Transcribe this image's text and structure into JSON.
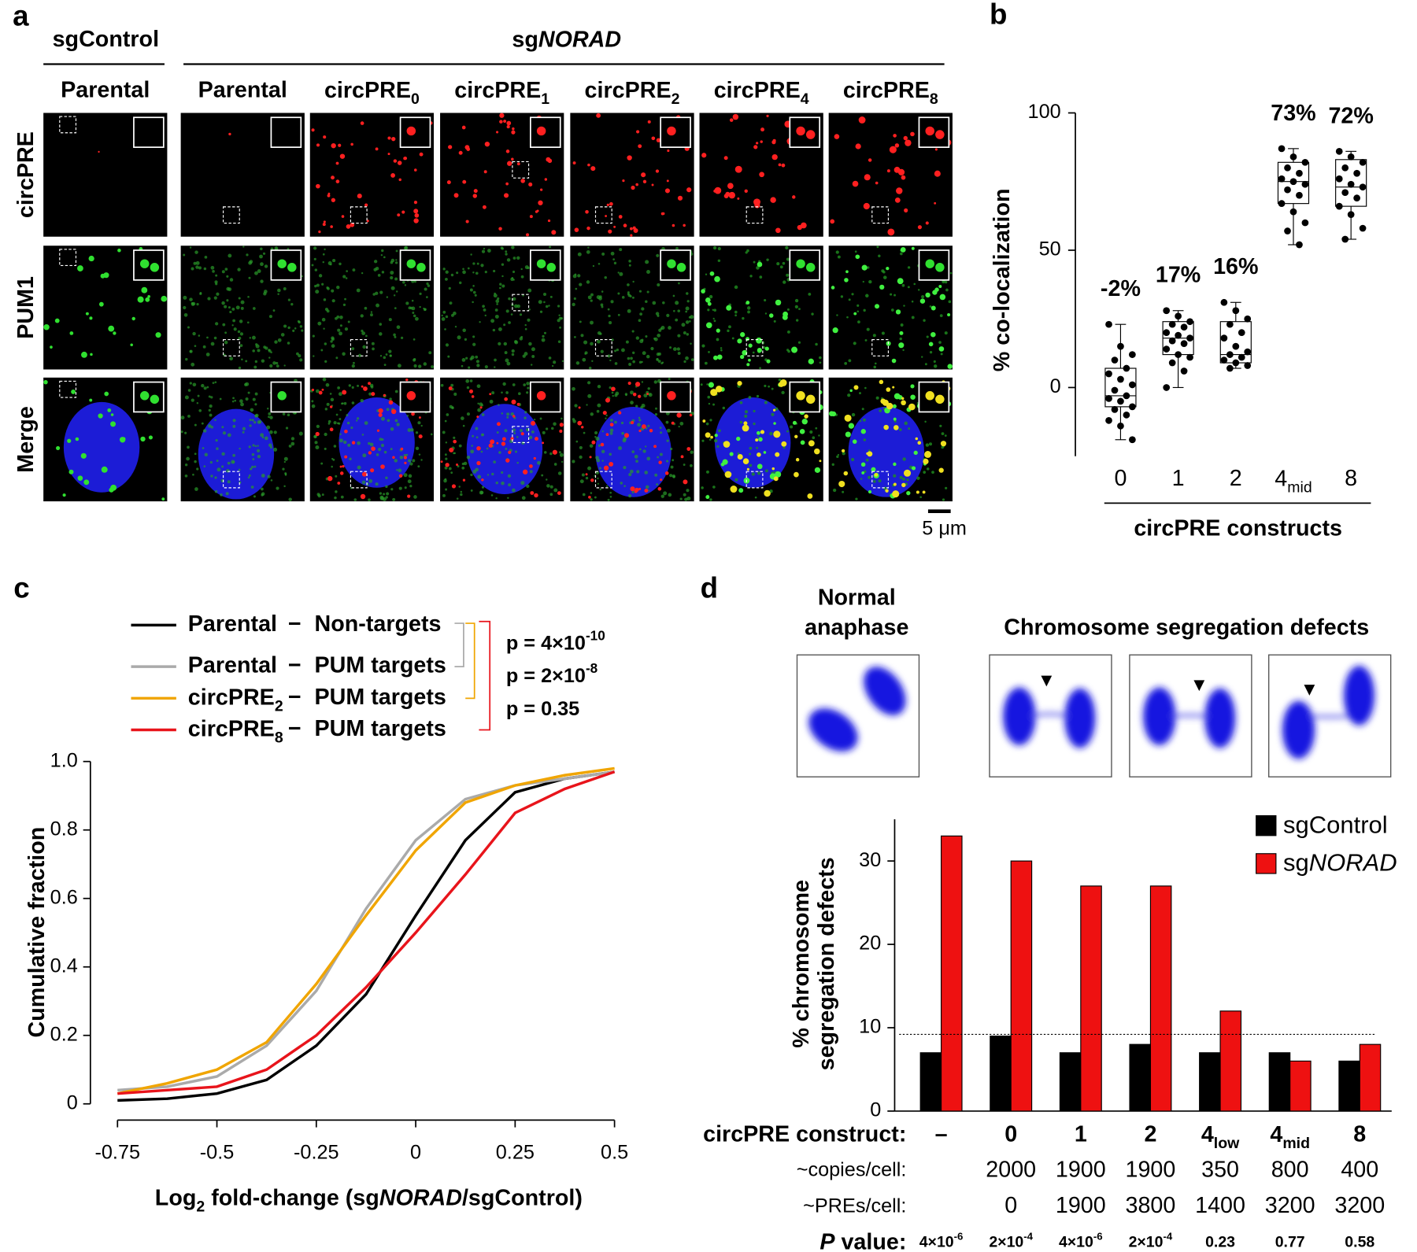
{
  "panel_a": {
    "label": "a",
    "groups": [
      "sgControl",
      [
        {
          "t": "sg"
        },
        {
          "t": "NORAD",
          "s": "it"
        }
      ]
    ],
    "columns": [
      "Parental",
      "Parental",
      [
        {
          "t": "circPRE"
        },
        {
          "t": "0",
          "s": "sub"
        }
      ],
      [
        {
          "t": "circPRE"
        },
        {
          "t": "1",
          "s": "sub"
        }
      ],
      [
        {
          "t": "circPRE"
        },
        {
          "t": "2",
          "s": "sub"
        }
      ],
      [
        {
          "t": "circPRE"
        },
        {
          "t": "4",
          "s": "sub"
        }
      ],
      [
        {
          "t": "circPRE"
        },
        {
          "t": "8",
          "s": "sub"
        }
      ]
    ],
    "rows": [
      "circPRE",
      "PUM1",
      "Merge"
    ],
    "scale_bar": "5 μm"
  },
  "chart_data": [
    {
      "type": "box",
      "label": "b",
      "ylabel": "% co-localization",
      "xlabel": "circPRE constructs",
      "categories": [
        "0",
        "1",
        "2",
        [
          {
            "t": "4"
          },
          {
            "t": "mid",
            "s": "sub"
          }
        ],
        "8"
      ],
      "ylim": [
        -25,
        100
      ],
      "yticks": [
        0,
        50,
        100
      ],
      "color": "#000000",
      "boxes": [
        {
          "min": -19,
          "q1": -7,
          "median": -3,
          "q3": 7,
          "max": 23,
          "points": [
            23,
            15,
            12,
            10,
            7,
            5,
            3,
            1,
            -1,
            -3,
            -4,
            -5,
            -7,
            -8,
            -10,
            -12,
            -14,
            -19
          ]
        },
        {
          "min": 0,
          "q1": 12,
          "median": 18,
          "q3": 24,
          "max": 28,
          "points": [
            28,
            26,
            24,
            23,
            22,
            20,
            19,
            18,
            17,
            16,
            14,
            12,
            11,
            9,
            6,
            0
          ]
        },
        {
          "min": 7,
          "q1": 9,
          "median": 12,
          "q3": 24,
          "max": 31,
          "points": [
            31,
            28,
            25,
            23,
            20,
            18,
            15,
            13,
            12,
            11,
            10,
            9,
            8,
            7
          ]
        },
        {
          "min": 52,
          "q1": 67,
          "median": 75,
          "q3": 82,
          "max": 87,
          "points": [
            87,
            84,
            82,
            80,
            78,
            76,
            75,
            74,
            72,
            70,
            67,
            64,
            60,
            57,
            52
          ]
        },
        {
          "min": 54,
          "q1": 66,
          "median": 73,
          "q3": 83,
          "max": 86,
          "points": [
            86,
            84,
            82,
            80,
            78,
            76,
            74,
            73,
            71,
            69,
            66,
            63,
            58,
            54
          ]
        }
      ],
      "values": [
        -2,
        17,
        16,
        73,
        72
      ],
      "value_labels": [
        "-2%",
        "17%",
        "16%",
        "73%",
        "72%"
      ]
    },
    {
      "type": "line",
      "label": "c",
      "xlabel": [
        {
          "t": "Log"
        },
        {
          "t": "2",
          "s": "sub"
        },
        {
          "t": " fold-change (sg"
        },
        {
          "t": "NORAD",
          "s": "it"
        },
        {
          "t": "/sgControl)"
        }
      ],
      "ylabel": "Cumulative fraction",
      "x": [
        -0.75,
        -0.625,
        -0.5,
        -0.375,
        -0.25,
        -0.125,
        0,
        0.125,
        0.25,
        0.375,
        0.5
      ],
      "xlim": [
        -0.75,
        0.5
      ],
      "ylim": [
        0,
        1
      ],
      "xticks": [
        -0.75,
        -0.5,
        -0.25,
        0,
        0.25,
        0.5
      ],
      "yticks": [
        0,
        0.2,
        0.4,
        0.6,
        0.8,
        {
          "value": 1,
          "label": "1.0"
        }
      ],
      "separator": "−",
      "series": [
        {
          "name": "Parental",
          "group": "Non-targets",
          "color": "#000000",
          "values": [
            0.01,
            0.015,
            0.03,
            0.07,
            0.17,
            0.32,
            0.55,
            0.77,
            0.91,
            0.95,
            0.97
          ]
        },
        {
          "name": "Parental",
          "group": "PUM targets",
          "color": "#aaaaaa",
          "values": [
            0.04,
            0.05,
            0.08,
            0.17,
            0.33,
            0.57,
            0.77,
            0.89,
            0.93,
            0.95,
            0.97
          ]
        },
        {
          "name": [
            {
              "t": "circPRE"
            },
            {
              "t": "2",
              "s": "sub"
            }
          ],
          "group": "PUM targets",
          "color": "#f0a500",
          "values": [
            0.03,
            0.06,
            0.1,
            0.18,
            0.35,
            0.55,
            0.74,
            0.88,
            0.93,
            0.96,
            0.98
          ]
        },
        {
          "name": [
            {
              "t": "circPRE"
            },
            {
              "t": "8",
              "s": "sub"
            }
          ],
          "group": "PUM targets",
          "color": "#e8141b",
          "values": [
            0.03,
            0.04,
            0.05,
            0.1,
            0.2,
            0.34,
            0.5,
            0.67,
            0.85,
            0.92,
            0.97
          ]
        }
      ],
      "p_values": [
        {
          "text": [
            {
              "t": "p = 4×10"
            },
            {
              "t": "-10",
              "s": "sup"
            }
          ],
          "color": "#aaaaaa"
        },
        {
          "text": [
            {
              "t": "p = 2×10"
            },
            {
              "t": "-8",
              "s": "sup"
            }
          ],
          "color": "#f0a500"
        },
        {
          "text": "p = 0.35",
          "color": "#e8141b"
        }
      ]
    },
    {
      "type": "grouped_bar",
      "label": "d",
      "image_titles": {
        "normal": [
          "Normal",
          "anaphase"
        ],
        "defects": "Chromosome segregation defects"
      },
      "ylabel": [
        "% chromosome",
        "segregation defects"
      ],
      "categories_label": "circPRE construct:",
      "categories": [
        "–",
        "0",
        "1",
        "2",
        [
          {
            "t": "4"
          },
          {
            "t": "low",
            "s": "sub"
          }
        ],
        [
          {
            "t": "4"
          },
          {
            "t": "mid",
            "s": "sub"
          }
        ],
        "8"
      ],
      "ylim": [
        0,
        35
      ],
      "yticks": [
        0,
        10,
        20,
        30
      ],
      "reference_line": 9.2,
      "series": [
        {
          "name": "sgControl",
          "color": "#000000",
          "values": [
            7,
            9,
            7,
            8,
            7,
            7,
            6
          ]
        },
        {
          "name": [
            {
              "t": "sg"
            },
            {
              "t": "NORAD",
              "s": "it"
            }
          ],
          "color": "#ee1111",
          "values": [
            33,
            30,
            27,
            27,
            12,
            6,
            8
          ]
        }
      ],
      "table": [
        {
          "label": "~copies/cell:",
          "values": [
            null,
            2000,
            1900,
            1900,
            350,
            800,
            400
          ]
        },
        {
          "label": "~PREs/cell:",
          "values": [
            null,
            0,
            1900,
            3800,
            1400,
            3200,
            3200
          ]
        }
      ],
      "p_value_label": [
        {
          "t": "P",
          "s": "it"
        },
        {
          "t": " value:"
        }
      ],
      "p_values": [
        {
          "text": [
            {
              "t": "4×10"
            },
            {
              "t": "-6",
              "s": "sup"
            }
          ],
          "color": "#ee1111"
        },
        {
          "text": [
            {
              "t": "2×10"
            },
            {
              "t": "-4",
              "s": "sup"
            }
          ],
          "color": "#ee1111"
        },
        {
          "text": [
            {
              "t": "4×10"
            },
            {
              "t": "-6",
              "s": "sup"
            }
          ],
          "color": "#ee1111"
        },
        {
          "text": [
            {
              "t": "2×10"
            },
            {
              "t": "-4",
              "s": "sup"
            }
          ],
          "color": "#ee1111"
        },
        {
          "text": "0.23",
          "color": "#000000"
        },
        {
          "text": "0.77",
          "color": "#000000"
        },
        {
          "text": "0.58",
          "color": "#000000"
        }
      ]
    }
  ]
}
